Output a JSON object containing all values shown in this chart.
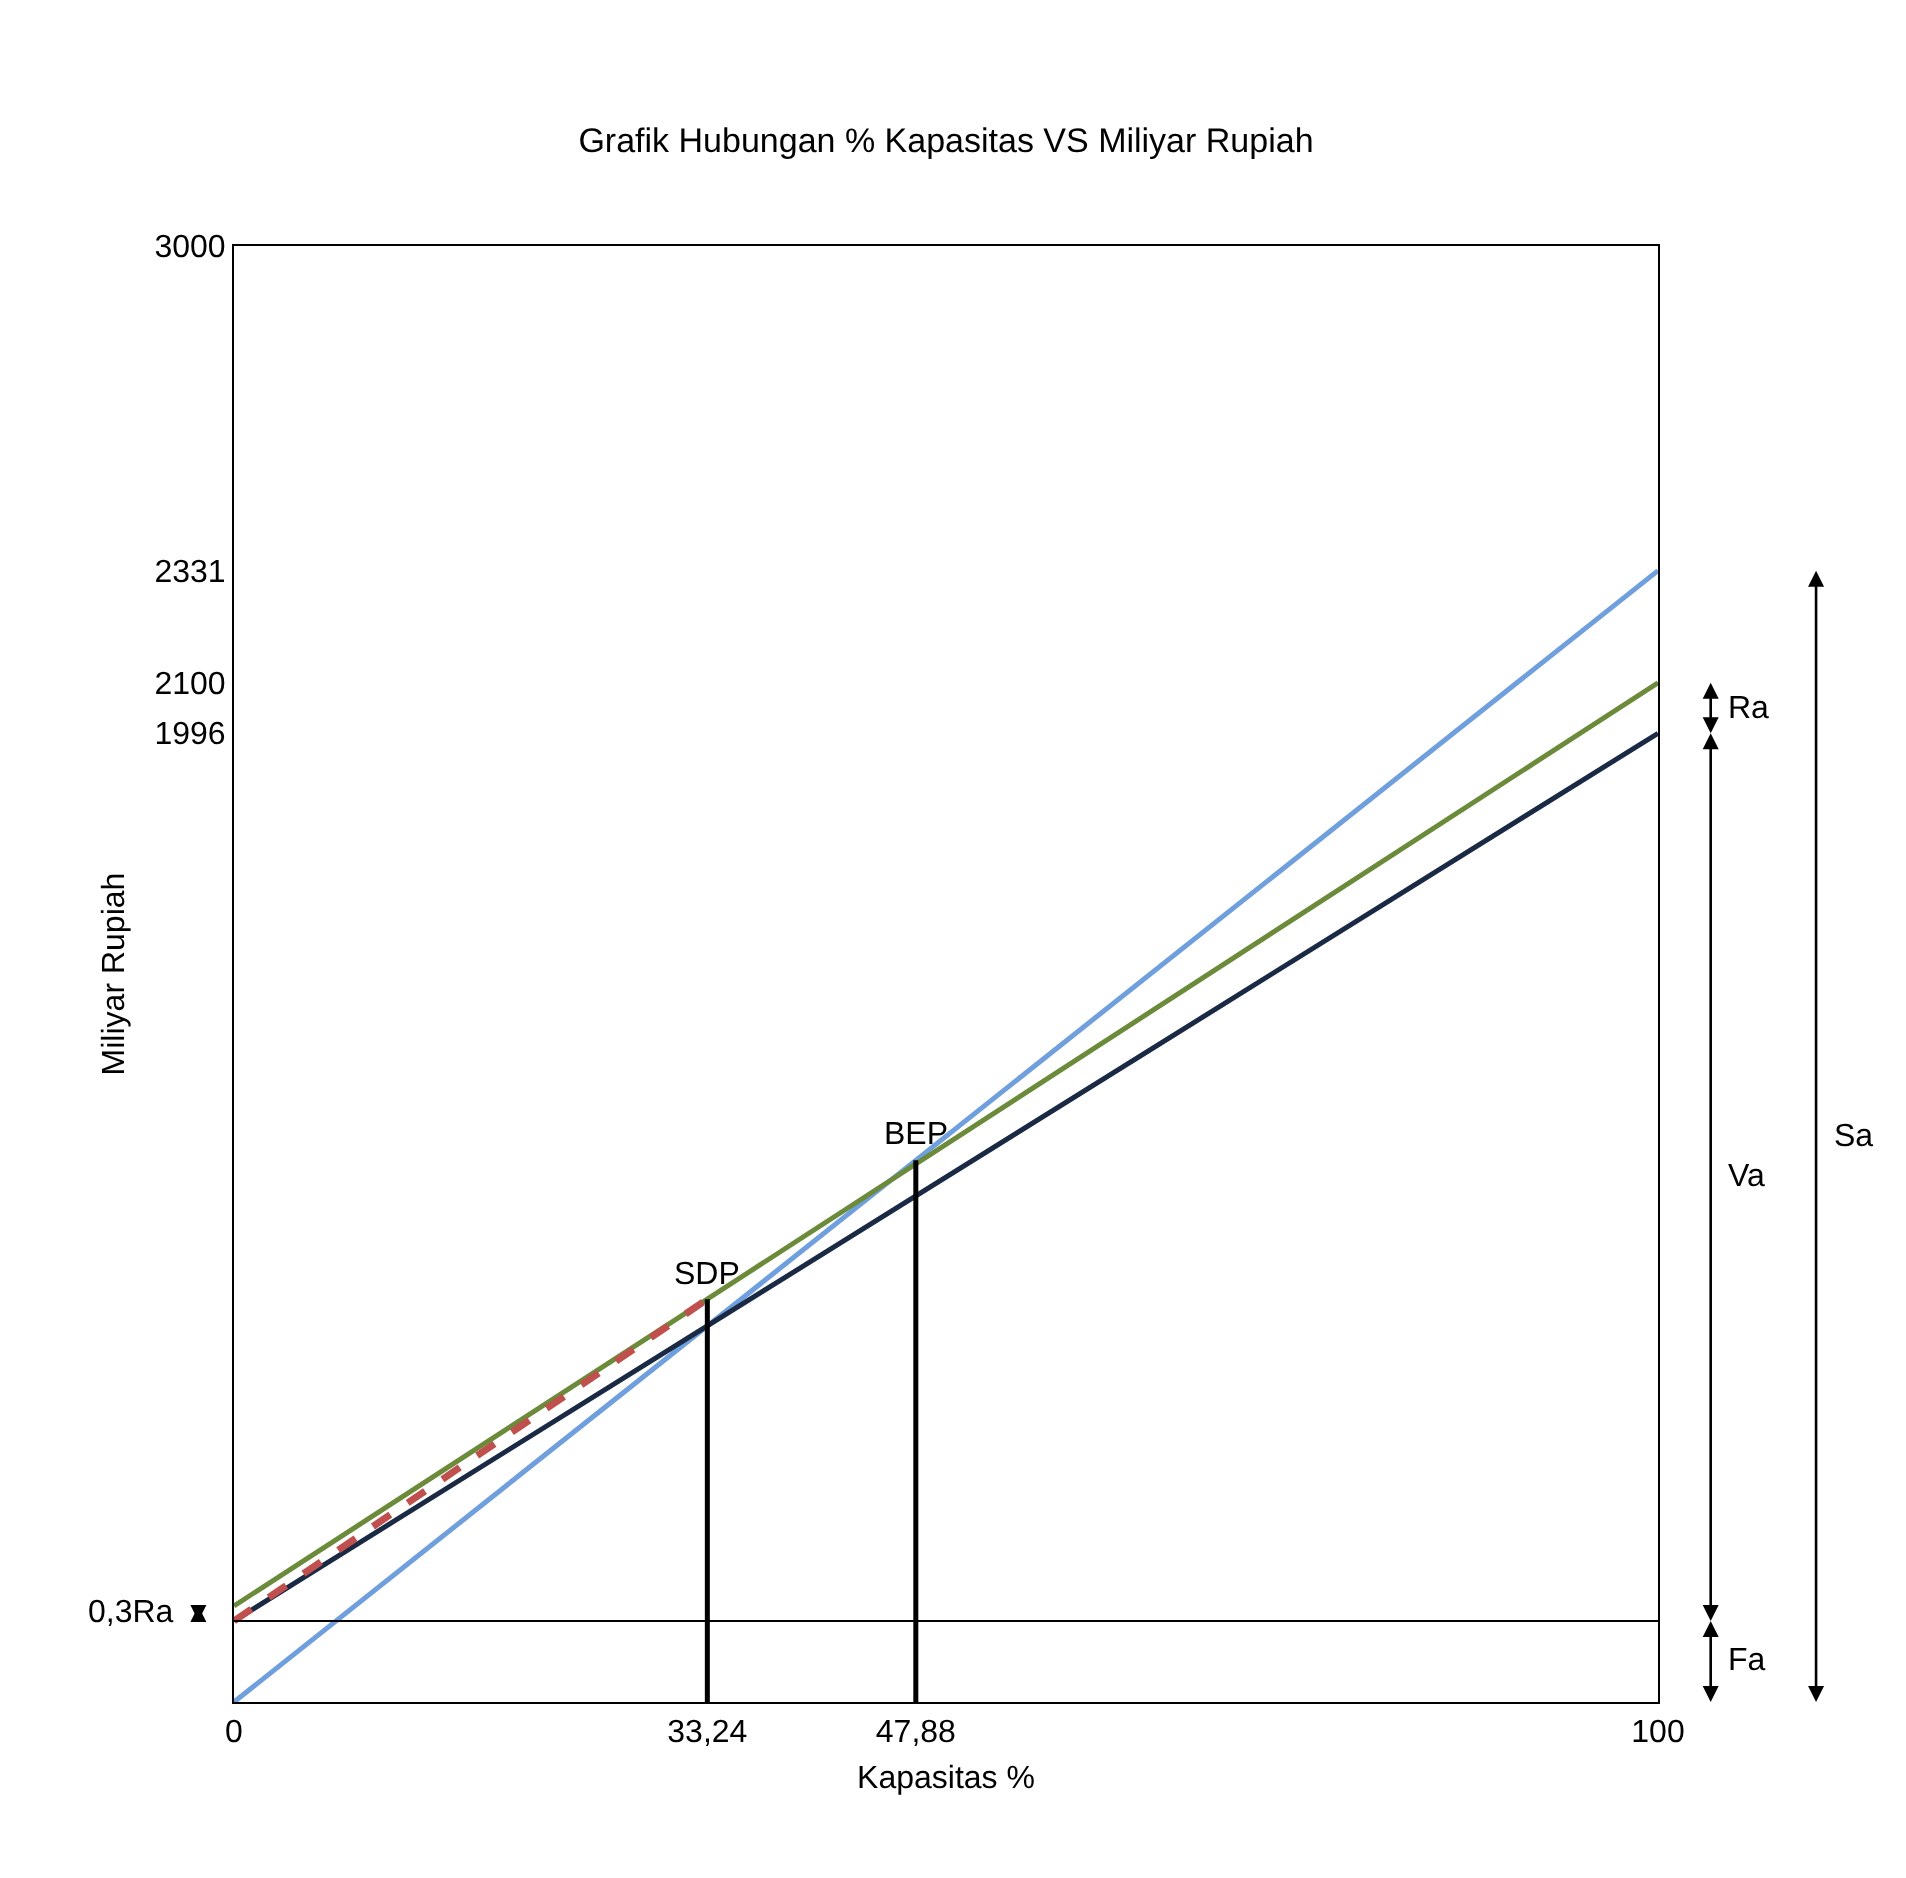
{
  "chart_data": {
    "type": "line",
    "title": "Grafik Hubungan % Kapasitas VS Miliyar Rupiah",
    "xlabel": "Kapasitas %",
    "ylabel": "Miliyar Rupiah",
    "xlim": [
      0,
      100
    ],
    "xticks": [
      0,
      {
        "value": 33.24,
        "label": "33,24"
      },
      {
        "value": 47.88,
        "label": "47,88"
      },
      100
    ],
    "ylim": [
      0,
      3000
    ],
    "yticks": [
      1996,
      2100,
      2331,
      3000
    ],
    "grid": false,
    "marker": "none",
    "series": [
      {
        "color": "#6f9fdc",
        "x": [
          0,
          100
        ],
        "values": [
          0,
          2331
        ]
      },
      {
        "color": "#6b8a3a",
        "x": [
          0,
          100
        ],
        "values": [
          198,
          2100
        ]
      },
      {
        "color": "#1a2a44",
        "x": [
          0,
          100
        ],
        "values": [
          167,
          1996
        ]
      },
      {
        "color": "#c0504d",
        "line_style": "dashed",
        "x": [
          0,
          33.24
        ],
        "values": [
          167,
          830
        ]
      },
      {
        "color": "#000000",
        "x": [
          33.24,
          33.24
        ],
        "values": [
          0,
          830
        ]
      },
      {
        "color": "#000000",
        "x": [
          47.88,
          47.88
        ],
        "values": [
          0,
          1116
        ]
      }
    ],
    "ref_lines": [
      {
        "axis": "y",
        "value": 167,
        "color": "#000000"
      }
    ],
    "annotations": [
      {
        "text": "SDP",
        "x": 33.24,
        "y": 830
      },
      {
        "text": "BEP",
        "x": 47.88,
        "y": 1116
      },
      "0,3Ra",
      "Ra",
      "Va",
      "Fa",
      "Sa"
    ]
  }
}
